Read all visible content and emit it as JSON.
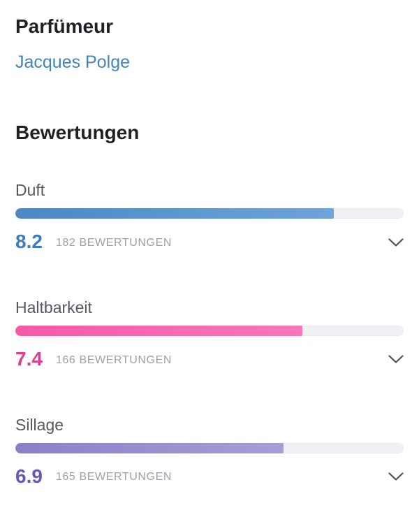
{
  "page": {
    "background": "#ffffff"
  },
  "perfumer_section": {
    "title": "Parfümeur",
    "link_label": "Jacques Polge",
    "link_color": "#4583ba"
  },
  "ratings_section": {
    "title": "Bewertungen",
    "track_color": "#f0f1f4",
    "max_score": 10,
    "items": [
      {
        "label": "Duft",
        "score": "8.2",
        "percent": 82,
        "count_label": "182 BEWERTUNGEN",
        "bar_color": "#4c87c4",
        "bar_color_light": "#6ea4d8",
        "score_color": "#3d7dbe"
      },
      {
        "label": "Haltbarkeit",
        "score": "7.4",
        "percent": 74,
        "count_label": "166 BEWERTUNGEN",
        "bar_color": "#f65aa8",
        "bar_color_light": "#f878b8",
        "score_color": "#e33b90"
      },
      {
        "label": "Sillage",
        "score": "6.9",
        "percent": 69,
        "count_label": "165 BEWERTUNGEN",
        "bar_color": "#8b80c5",
        "bar_color_light": "#a89dd6",
        "score_color": "#6659b5"
      }
    ]
  },
  "chart_data": {
    "type": "bar",
    "title": "Bewertungen",
    "categories": [
      "Duft",
      "Haltbarkeit",
      "Sillage"
    ],
    "values": [
      8.2,
      7.4,
      6.9
    ],
    "counts": [
      182,
      166,
      165
    ],
    "ylim": [
      0,
      10
    ]
  }
}
